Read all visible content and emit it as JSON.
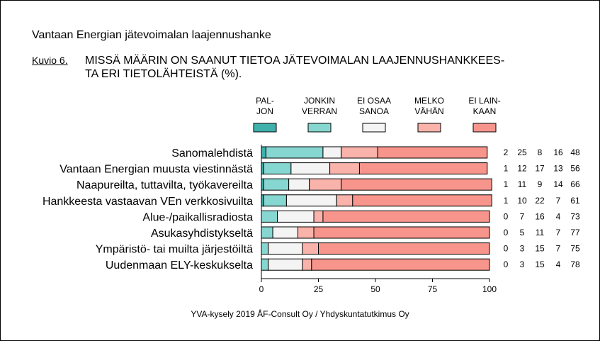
{
  "header": {
    "survey_title": "Vantaan Energian jätevoimalan laajennushanke",
    "figure_number": "Kuvio 6.",
    "figure_title_line1": "MISSÄ MÄÄRIN ON SAANUT TIETOA JÄTEVOIMALAN LAAJENNUSHANKKEES-",
    "figure_title_line2": "TA ERI TIETOLÄHTEISTÄ (%)."
  },
  "footer": {
    "source": "YVA-kysely 2019 ÅF-Consult Oy / Yhdyskuntatutkimus Oy"
  },
  "chart_data": {
    "type": "bar",
    "orientation": "horizontal",
    "stacked": true,
    "title": "MISSÄ MÄÄRIN ON SAANUT TIETOA JÄTEVOIMALAN LAAJENNUSHANKKEESTA ERI TIETOLÄHTEISTÄ (%).",
    "categories": [
      "Sanomalehdistä",
      "Vantaan Energian muusta viestinnästä",
      "Naapureilta, tuttavilta, työkavereilta",
      "Hankkeesta vastaavan VEn verkkosivuilta",
      "Alue-/paikallisradiosta",
      "Asukasyhdistykseltä",
      "Ympäristö- tai muilta järjestöiltä",
      "Uudenmaan ELY-keskukselta"
    ],
    "series": [
      {
        "name": "PAL- JON",
        "name_lines": [
          "PAL-",
          "JON"
        ],
        "color": "#3fb0ac",
        "values": [
          2,
          1,
          1,
          1,
          0,
          0,
          0,
          0
        ]
      },
      {
        "name": "JONKIN VERRAN",
        "name_lines": [
          "JONKIN",
          "VERRAN"
        ],
        "color": "#86d6d1",
        "values": [
          25,
          12,
          11,
          10,
          7,
          5,
          3,
          3
        ]
      },
      {
        "name": "EI OSAA SANOA",
        "name_lines": [
          "EI OSAA",
          "SANOA"
        ],
        "color": "#f4f4f4",
        "values": [
          8,
          17,
          9,
          22,
          16,
          11,
          15,
          15
        ]
      },
      {
        "name": "MELKO VÄHÄN",
        "name_lines": [
          "MELKO",
          "VÄHÄN"
        ],
        "color": "#f9b3aa",
        "values": [
          16,
          13,
          14,
          7,
          4,
          7,
          7,
          4
        ]
      },
      {
        "name": "EI LAIN- KAAN",
        "name_lines": [
          "EI LAIN-",
          "KAAN"
        ],
        "color": "#f7958c",
        "values": [
          48,
          56,
          66,
          61,
          73,
          77,
          75,
          78
        ]
      }
    ],
    "xlim": [
      0,
      100
    ],
    "xticks": [
      0,
      25,
      50,
      75,
      100
    ],
    "xlabel": "",
    "ylabel": "",
    "grid": false,
    "legend_position": "top",
    "value_labels_position": "right"
  }
}
